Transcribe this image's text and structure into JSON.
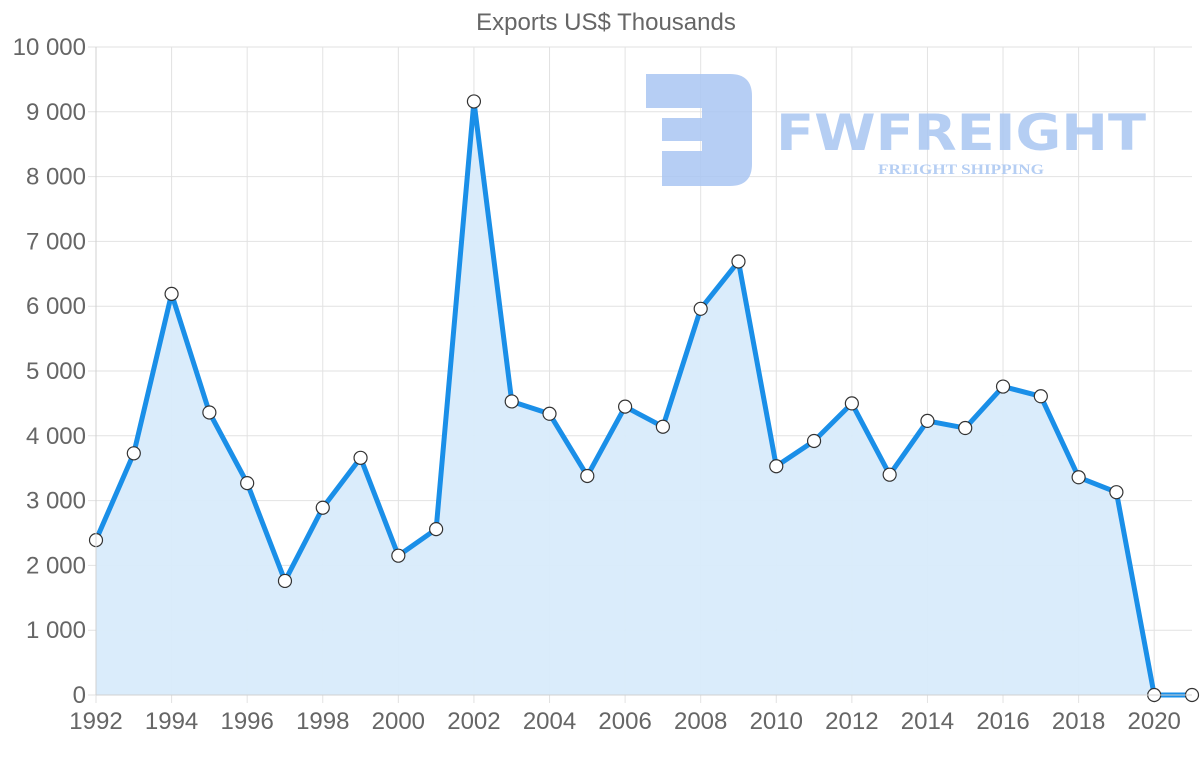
{
  "chart_data": {
    "type": "area",
    "title": "Exports US$ Thousands",
    "xlabel": "",
    "ylabel": "",
    "x": [
      1992,
      1993,
      1994,
      1995,
      1996,
      1997,
      1998,
      1999,
      2000,
      2001,
      2002,
      2003,
      2004,
      2005,
      2006,
      2007,
      2008,
      2009,
      2010,
      2011,
      2012,
      2013,
      2014,
      2015,
      2016,
      2017,
      2018,
      2019,
      2020,
      2021
    ],
    "series": [
      {
        "name": "Exports US$ Thousands",
        "values": [
          2390,
          3730,
          6190,
          4360,
          3270,
          1760,
          2890,
          3660,
          2150,
          2560,
          9160,
          4530,
          4340,
          3380,
          4450,
          4140,
          5960,
          6690,
          3530,
          3920,
          4500,
          3400,
          4230,
          4120,
          4760,
          4610,
          3360,
          3130,
          0,
          0
        ]
      }
    ],
    "ylim": [
      0,
      10000
    ],
    "yticks": [
      "0",
      "1 000",
      "2 000",
      "3 000",
      "4 000",
      "5 000",
      "6 000",
      "7 000",
      "8 000",
      "9 000",
      "10 000"
    ],
    "xticks": [
      "1992",
      "1994",
      "1996",
      "1998",
      "2000",
      "2002",
      "2004",
      "2006",
      "2008",
      "2010",
      "2012",
      "2014",
      "2016",
      "2018",
      "2020"
    ],
    "grid": true,
    "legend": "none",
    "colors": {
      "line": "#1a8fe8",
      "fill": "#d8ebfb",
      "point_fill": "#ffffff",
      "point_stroke": "#333333"
    }
  },
  "watermark": {
    "brand": "FWFREIGHT",
    "tagline": "FREIGHT SHIPPING",
    "color": "#a9c6f2"
  }
}
